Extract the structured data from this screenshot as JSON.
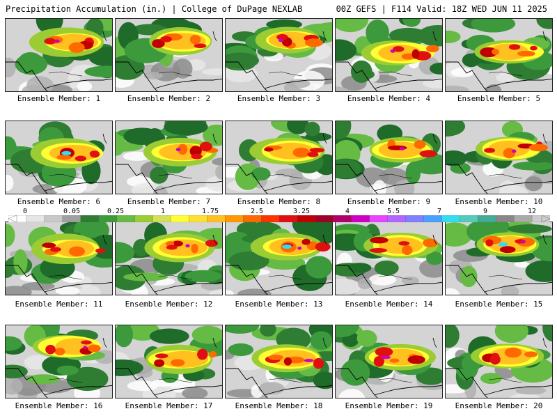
{
  "header": {
    "left": "Precipitation Accumulation (in.) | College of DuPage NEXLAB",
    "right": "00Z GEFS | F114 Valid: 18Z WED JUN 11 2025"
  },
  "colorbar": {
    "labels": [
      "0",
      "0.05",
      "0.25",
      "1",
      "1.75",
      "2.5",
      "3.25",
      "4",
      "5.5",
      "7",
      "9",
      "12"
    ],
    "colors": [
      "#ffffff",
      "#e6e6e6",
      "#c8c8c8",
      "#a0a0a0",
      "#2e7d32",
      "#3c9a3c",
      "#66bb44",
      "#9ccc33",
      "#d4e157",
      "#ffff33",
      "#ffe030",
      "#ffc020",
      "#ff9900",
      "#ff6a00",
      "#ff3300",
      "#e01010",
      "#c00000",
      "#a00028",
      "#b0006a",
      "#d000c0",
      "#e844ff",
      "#b266ff",
      "#7f7fff",
      "#4aa0ff",
      "#33ddee",
      "#55ccbb",
      "#44aa99",
      "#888888",
      "#aaaaaa",
      "#cccccc"
    ]
  },
  "panels": [
    {
      "label": "Ensemble Member: 1"
    },
    {
      "label": "Ensemble Member: 2"
    },
    {
      "label": "Ensemble Member: 3"
    },
    {
      "label": "Ensemble Member: 4"
    },
    {
      "label": "Ensemble Member: 5"
    },
    {
      "label": "Ensemble Member: 6"
    },
    {
      "label": "Ensemble Member: 7"
    },
    {
      "label": "Ensemble Member: 8"
    },
    {
      "label": "Ensemble Member: 9"
    },
    {
      "label": "Ensemble Member: 10"
    },
    {
      "label": "Ensemble Member: 11"
    },
    {
      "label": "Ensemble Member: 12"
    },
    {
      "label": "Ensemble Member: 13"
    },
    {
      "label": "Ensemble Member: 14"
    },
    {
      "label": "Ensemble Member: 15"
    },
    {
      "label": "Ensemble Member: 16"
    },
    {
      "label": "Ensemble Member: 17"
    },
    {
      "label": "Ensemble Member: 18"
    },
    {
      "label": "Ensemble Member: 19"
    },
    {
      "label": "Ensemble Member: 20"
    }
  ]
}
